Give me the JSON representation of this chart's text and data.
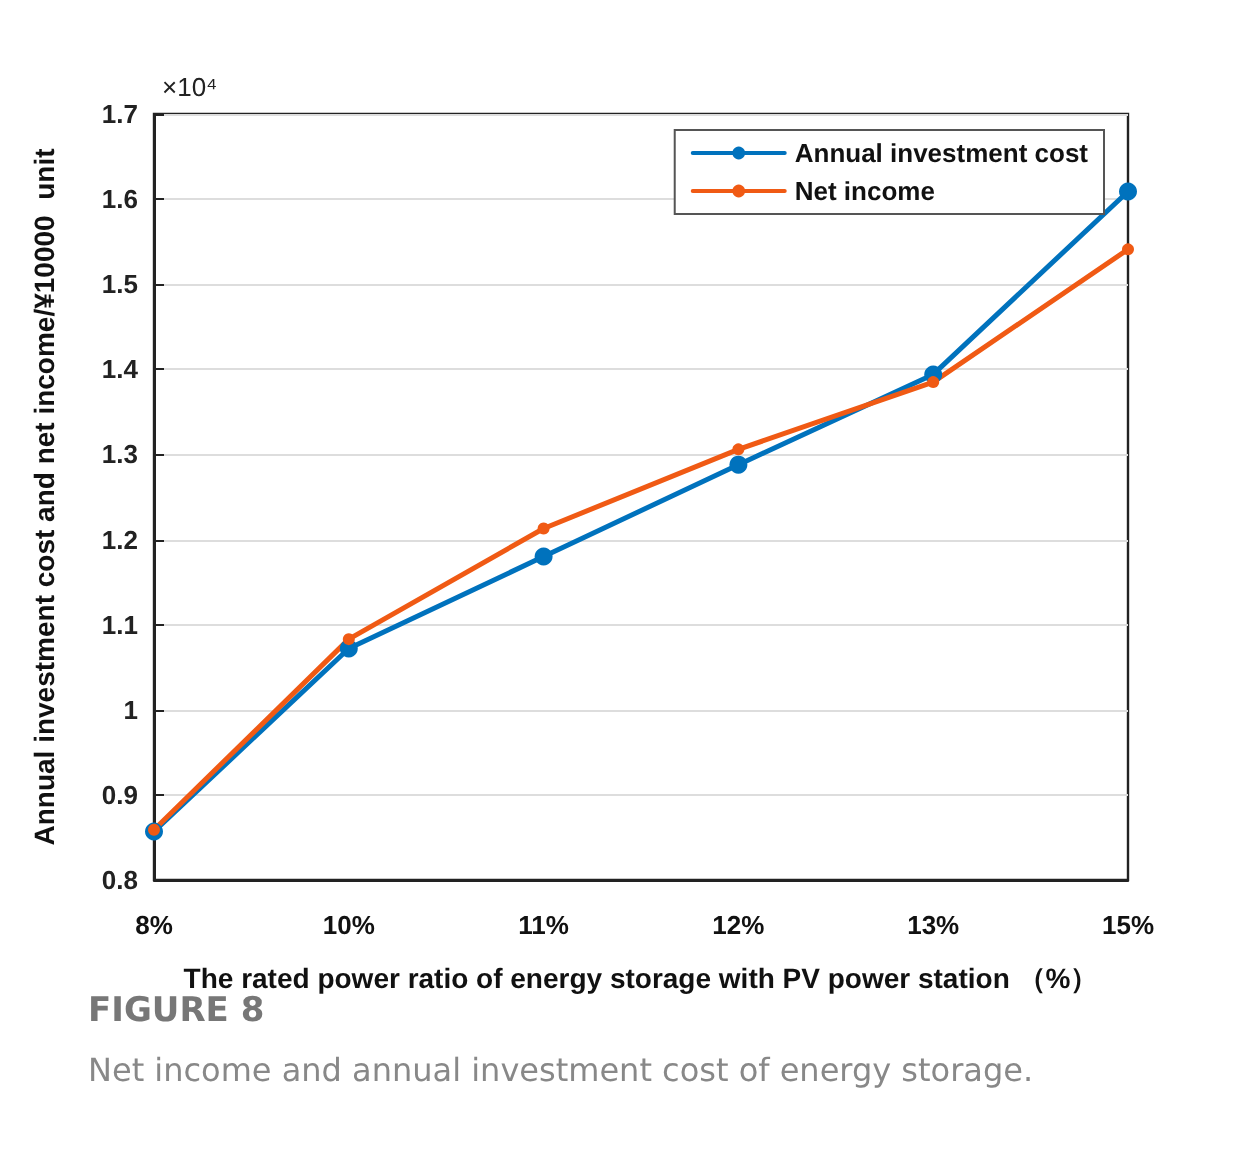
{
  "chart_data": {
    "type": "line",
    "xlabel": "The rated power ratio of energy storage with PV power station （%）",
    "ylabel": "Annual investment cost and net income/¥10000  unit",
    "categories": [
      "8%",
      "10%",
      "11%",
      "12%",
      "13%",
      "15%"
    ],
    "series": [
      {
        "name": "Annual investment cost",
        "color": "#0072bd",
        "values": [
          0.857,
          1.072,
          1.18,
          1.288,
          1.394,
          1.609
        ]
      },
      {
        "name": "Net income",
        "color": "#f05a14",
        "values": [
          0.859,
          1.083,
          1.213,
          1.306,
          1.385,
          1.541
        ]
      }
    ],
    "ylim": [
      0.8,
      1.7
    ],
    "yticks": [
      0.8,
      0.9,
      1,
      1.1,
      1.2,
      1.3,
      1.4,
      1.5,
      1.6,
      1.7
    ],
    "grid": "y",
    "legend": "top right",
    "marker": "circle",
    "line_style": "solid",
    "annotations": [
      "×10⁴",
      "FIGURE 8",
      "Net income and annual investment cost of energy storage."
    ]
  }
}
